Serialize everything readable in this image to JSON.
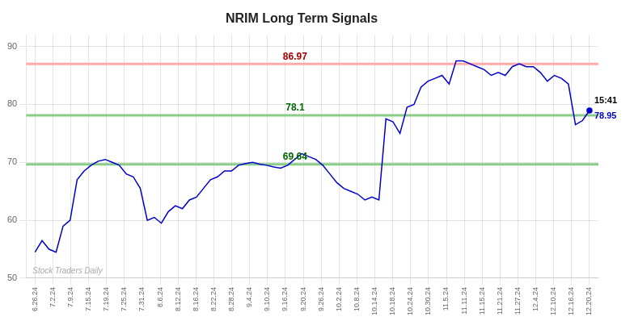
{
  "chart_data": {
    "type": "line",
    "title": "NRIM Long Term Signals",
    "color": "#0000cc",
    "grid": true,
    "x": [
      0,
      0.3924,
      0.7848,
      1.1772,
      1.5696,
      1.962,
      2.3544,
      2.7468,
      3.1392,
      3.5316,
      3.9241,
      4.3165,
      4.7089,
      5.1013,
      5.4937,
      5.8861,
      6.2785,
      6.6709,
      7.0633,
      7.4557,
      7.8481,
      8.2405,
      8.6329,
      9.0253,
      9.4177,
      9.8101,
      10.2025,
      10.5949,
      10.9873,
      11.3797,
      11.7722,
      12.1646,
      12.557,
      12.9494,
      13.3418,
      13.7342,
      14.1266,
      14.519,
      14.9114,
      15.3038,
      15.6962,
      16.0886,
      16.481,
      16.8734,
      17.2658,
      17.6582,
      18.0506,
      18.443,
      18.8354,
      19.2278,
      19.6203,
      20.0127,
      20.4051,
      20.7975,
      21.1899,
      21.5823,
      21.9747,
      22.3671,
      22.7595,
      23.1519,
      23.5443,
      23.9367,
      24.3291,
      24.7215,
      25.1139,
      25.5063,
      25.8987,
      26.2911,
      26.6835,
      27.0759,
      27.4684,
      27.8608,
      28.2532,
      28.6456,
      29.038,
      29.4304,
      29.8228,
      30.2152,
      30.6076,
      31
    ],
    "values": [
      54.5,
      56.5,
      55.0,
      54.5,
      59.0,
      60.0,
      67.0,
      68.5,
      69.5,
      70.2,
      70.5,
      70.0,
      69.5,
      68.0,
      67.5,
      65.5,
      60.0,
      60.5,
      59.5,
      61.5,
      62.5,
      62.0,
      63.5,
      64.0,
      65.5,
      67.0,
      67.5,
      68.5,
      68.5,
      69.5,
      69.8,
      70.0,
      69.7,
      69.5,
      69.2,
      69.0,
      69.5,
      70.5,
      71.5,
      71.0,
      70.5,
      69.5,
      68.0,
      66.5,
      65.5,
      65.0,
      64.5,
      63.5,
      64.0,
      63.5,
      77.5,
      77.0,
      75.0,
      79.5,
      80.0,
      83.0,
      84.0,
      84.5,
      85.0,
      83.5,
      87.5,
      87.5,
      87.0,
      86.5,
      86.0,
      85.0,
      85.5,
      85.0,
      86.5,
      87.0,
      86.5,
      86.5,
      85.5,
      84.0,
      85.0,
      84.5,
      83.5,
      76.5,
      77.2,
      78.95
    ],
    "xlim": [
      -0.5,
      31.5
    ],
    "xticks": [
      {
        "value": 0,
        "label": "6.26.24"
      },
      {
        "value": 1,
        "label": "7.2.24"
      },
      {
        "value": 2,
        "label": "7.9.24"
      },
      {
        "value": 3,
        "label": "7.15.24"
      },
      {
        "value": 4,
        "label": "7.19.24"
      },
      {
        "value": 5,
        "label": "7.25.24"
      },
      {
        "value": 6,
        "label": "7.31.24"
      },
      {
        "value": 7,
        "label": "8.6.24"
      },
      {
        "value": 8,
        "label": "8.12.24"
      },
      {
        "value": 9,
        "label": "8.16.24"
      },
      {
        "value": 10,
        "label": "8.22.24"
      },
      {
        "value": 11,
        "label": "8.28.24"
      },
      {
        "value": 12,
        "label": "9.4.24"
      },
      {
        "value": 13,
        "label": "9.10.24"
      },
      {
        "value": 14,
        "label": "9.16.24"
      },
      {
        "value": 15,
        "label": "9.20.24"
      },
      {
        "value": 16,
        "label": "9.26.24"
      },
      {
        "value": 17,
        "label": "10.2.24"
      },
      {
        "value": 18,
        "label": "10.8.24"
      },
      {
        "value": 19,
        "label": "10.14.24"
      },
      {
        "value": 20,
        "label": "10.18.24"
      },
      {
        "value": 21,
        "label": "10.24.24"
      },
      {
        "value": 22,
        "label": "10.30.24"
      },
      {
        "value": 23,
        "label": "11.5.24"
      },
      {
        "value": 24,
        "label": "11.11.24"
      },
      {
        "value": 25,
        "label": "11.15.24"
      },
      {
        "value": 26,
        "label": "11.21.24"
      },
      {
        "value": 27,
        "label": "11.27.24"
      },
      {
        "value": 28,
        "label": "12.4.24"
      },
      {
        "value": 29,
        "label": "12.10.24"
      },
      {
        "value": 30,
        "label": "12.16.24"
      },
      {
        "value": 31,
        "label": "12.20.24"
      }
    ],
    "ylim": [
      50,
      92
    ],
    "yticks": [
      50,
      60,
      70,
      80,
      90
    ],
    "hlines": [
      {
        "value": 86.97,
        "label": "86.97",
        "color": "#ffaaaa",
        "label_color": "#aa0000"
      },
      {
        "value": 78.1,
        "label": "78.1",
        "color": "#88cc88",
        "label_color": "#006600"
      },
      {
        "value": 69.64,
        "label": "69.64",
        "color": "#88cc88",
        "label_color": "#006600"
      }
    ],
    "annotations": [
      {
        "text": "15:41",
        "color": "#000000"
      },
      {
        "text": "78.95",
        "color": "#0000cc"
      },
      {
        "text": "Stock Traders Daily",
        "color": "#aaaaaa"
      }
    ]
  }
}
